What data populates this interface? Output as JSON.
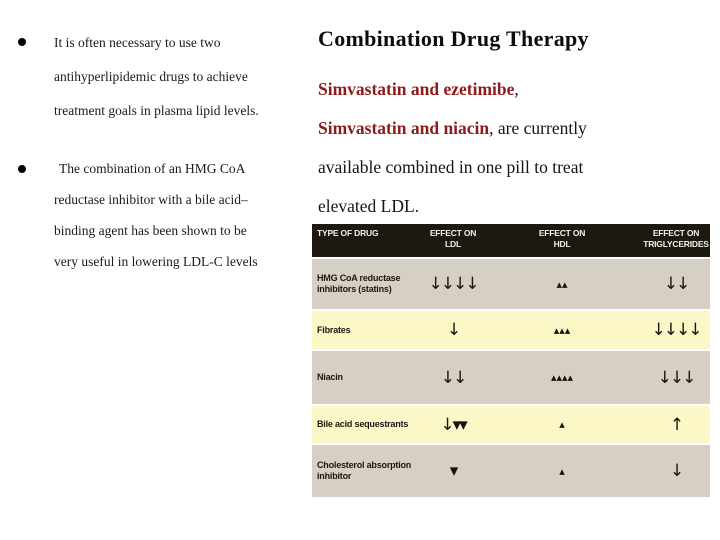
{
  "slide": {
    "title": "Combination Drug Therapy",
    "accent_red": "#8e1b1b",
    "bullets": [
      {
        "lines": [
          "It is often necessary to use two",
          "antihyperlipidemic drugs to achieve",
          "treatment goals in plasma lipid levels."
        ]
      },
      {
        "lines": [
          "The combination of an HMG CoA",
          "reductase inhibitor with a bile acid–",
          "binding agent has been shown to be",
          "very useful in lowering LDL-C levels"
        ]
      }
    ],
    "paragraph": {
      "line1_red": "Simvastatin and ezetimibe",
      "line1_rest": ",",
      "line2_red": "Simvastatin and niacin",
      "line2_rest": ", are currently",
      "line3": "available combined in one pill to treat",
      "line4": "elevated LDL."
    }
  },
  "table": {
    "colors": {
      "header_bg": "#1e1813",
      "header_text": "#f2efe8",
      "row_beige": "#d6cfc3",
      "row_yellow": "#fbf7c6"
    },
    "header": {
      "col1": "TYPE OF DRUG",
      "col2_top": "EFFECT ON",
      "col2_bottom": "LDL",
      "col3_top": "EFFECT ON",
      "col3_bottom": "HDL",
      "col4_top": "EFFECT ON",
      "col4_bottom": "TRIGLYCERIDES"
    },
    "rows": [
      {
        "drug": "HMG CoA reductase inhibitors (statins)",
        "ldl": "↓↓↓↓",
        "hdl": "▴▴",
        "tg": "↓↓"
      },
      {
        "drug": "Fibrates",
        "ldl": "↓",
        "hdl": "▴▴▴",
        "tg": "↓↓↓↓"
      },
      {
        "drug": "Niacin",
        "ldl": "↓↓",
        "hdl": "▴▴▴▴",
        "tg": "↓↓↓"
      },
      {
        "drug": "Bile acid sequestrants",
        "ldl": "↓▾▾",
        "hdl": "▴",
        "tg": "↑"
      },
      {
        "drug": "Cholesterol absorption inhibitor",
        "ldl": "▾",
        "hdl": "▴",
        "tg": "↓"
      }
    ]
  }
}
